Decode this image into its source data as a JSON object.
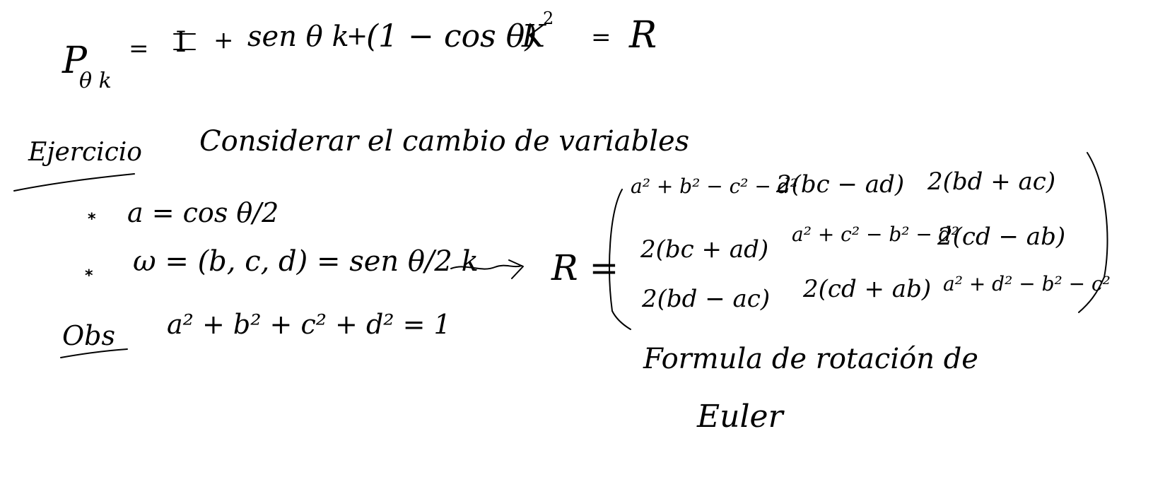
{
  "equation": {
    "lhs_symbol": "P",
    "lhs_subscript": "θ k",
    "eq1": "=",
    "identity": "I",
    "plus1": "+",
    "sin_term": "sen θ k",
    "plus2": "+",
    "one_minus_cos": "(1 − cos θ)",
    "k_squared_base": "K",
    "k_squared_exp": "2",
    "eq2": "=",
    "rhs": "R"
  },
  "exercise": {
    "title": "Ejercicio",
    "instruction": "Considerar el cambio de variables",
    "bullet_symbol": "*",
    "item_a": "a = cos θ/2",
    "item_w": "ω = (b, c, d) = sen θ/2 k",
    "obs_label": "Obs",
    "obs_text": "a² + b² + c² + d² = 1"
  },
  "matrix": {
    "lhs": "R =",
    "rows": [
      [
        "a² + b² − c² − d²",
        "2(bc − ad)",
        "2(bd + ac)"
      ],
      [
        "2(bc + ad)",
        "a² + c² − b² − d²",
        "2(cd − ab)"
      ],
      [
        "2(bd − ac)",
        "2(cd + ab)",
        "a² + d² − b² − c²"
      ]
    ]
  },
  "caption": {
    "line1": "Formula de rotación de",
    "line2": "Euler"
  }
}
